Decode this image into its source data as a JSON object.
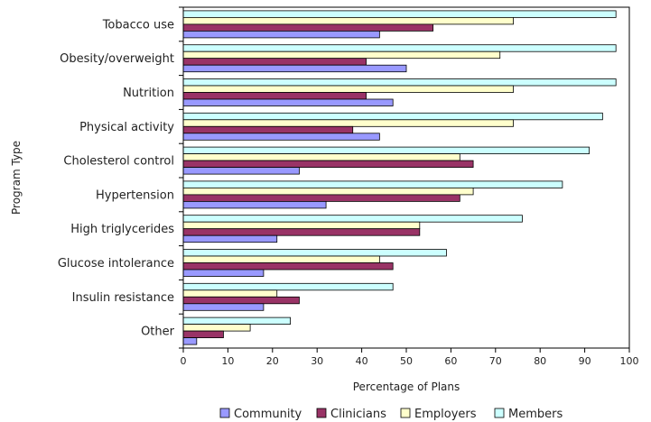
{
  "chart_data": {
    "type": "bar",
    "orientation": "horizontal",
    "title": "",
    "xlabel": "Percentage of Plans",
    "ylabel": "Program Type",
    "xlim": [
      0,
      100
    ],
    "x_ticks": [
      0,
      10,
      20,
      30,
      40,
      50,
      60,
      70,
      80,
      90,
      100
    ],
    "grid": false,
    "legend_position": "bottom",
    "categories": [
      "Tobacco use",
      "Obesity/overweight",
      "Nutrition",
      "Physical activity",
      "Cholesterol control",
      "Hypertension",
      "High triglycerides",
      "Glucose intolerance",
      "Insulin resistance",
      "Other"
    ],
    "series": [
      {
        "name": "Community",
        "color": "#9999ff",
        "values": [
          44,
          50,
          47,
          44,
          26,
          32,
          21,
          18,
          18,
          3
        ]
      },
      {
        "name": "Clinicians",
        "color": "#993366",
        "values": [
          56,
          41,
          41,
          38,
          65,
          62,
          53,
          47,
          26,
          9
        ]
      },
      {
        "name": "Employers",
        "color": "#ffffcc",
        "values": [
          74,
          71,
          74,
          74,
          62,
          65,
          53,
          44,
          21,
          15
        ]
      },
      {
        "name": "Members",
        "color": "#ccffff",
        "values": [
          97,
          97,
          97,
          94,
          91,
          85,
          76,
          59,
          47,
          24
        ]
      }
    ]
  }
}
